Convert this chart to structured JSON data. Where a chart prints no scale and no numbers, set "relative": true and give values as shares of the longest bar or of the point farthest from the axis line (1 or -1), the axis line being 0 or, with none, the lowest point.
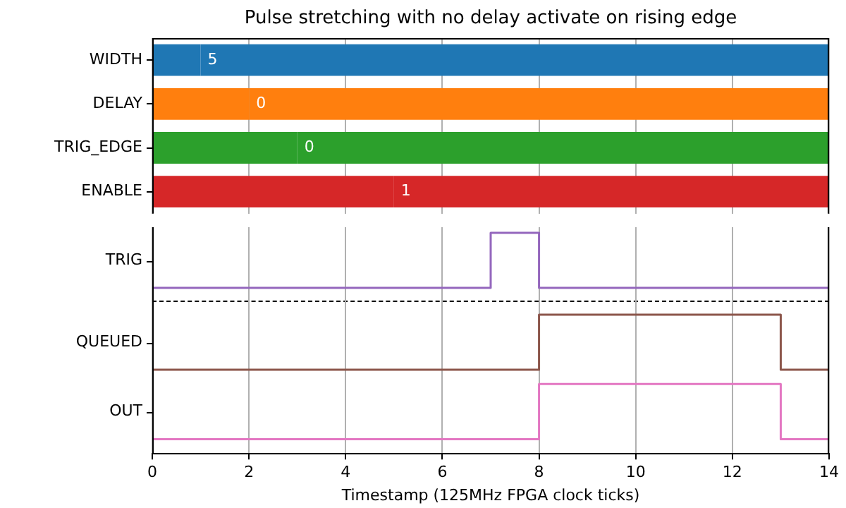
{
  "chart_data": [
    {
      "type": "bar",
      "orientation": "horizontal",
      "stacked": true,
      "title": "Pulse stretching with no delay activate on rising edge",
      "categories": [
        "WIDTH",
        "DELAY",
        "TRIG_EDGE",
        "ENABLE"
      ],
      "xlim": [
        0,
        14
      ],
      "xticks": [
        0,
        2,
        4,
        6,
        8,
        10,
        12,
        14
      ],
      "tick_labels": "y",
      "grid": "x",
      "series": [
        {
          "colors": [
            "#1f77b4",
            "#ff7f0e",
            "#2ca02c",
            "#d62728"
          ],
          "values": [
            1,
            2,
            3,
            5
          ]
        },
        {
          "colors": [
            "#1f77b4",
            "#ff7f0e",
            "#2ca02c",
            "#d62728"
          ],
          "values": [
            13,
            12,
            11,
            9
          ]
        }
      ],
      "annotations": [
        {
          "text": "5",
          "x": 1,
          "y": "WIDTH"
        },
        {
          "text": "0",
          "x": 2,
          "y": "DELAY"
        },
        {
          "text": "0",
          "x": 3,
          "y": "TRIG_EDGE"
        },
        {
          "text": "1",
          "x": 5,
          "y": "ENABLE"
        }
      ]
    },
    {
      "type": "step",
      "ylabel": "TRIG",
      "relative": true,
      "xlim": [
        0,
        14
      ],
      "xticks": [
        0,
        2,
        4,
        6,
        8,
        10,
        12,
        14
      ],
      "tick_labels": false,
      "grid": "x",
      "series": [
        {
          "color": "#9467bd",
          "x": [
            0,
            7,
            8,
            14
          ],
          "values": [
            0,
            1,
            0,
            0
          ]
        }
      ]
    },
    {
      "type": "step",
      "ylabel": "QUEUED",
      "relative": true,
      "xlim": [
        0,
        14
      ],
      "xticks": [
        0,
        2,
        4,
        6,
        8,
        10,
        12,
        14
      ],
      "tick_labels": false,
      "grid": "x",
      "series": [
        {
          "color": "#8c564b",
          "x": [
            0,
            8,
            13,
            14
          ],
          "values": [
            0,
            1,
            0,
            0
          ]
        }
      ]
    },
    {
      "type": "step",
      "ylabel": "OUT",
      "relative": true,
      "xlabel": "Timestamp (125MHz FPGA clock ticks)",
      "xlim": [
        0,
        14
      ],
      "xticks": [
        0,
        2,
        4,
        6,
        8,
        10,
        12,
        14
      ],
      "tick_labels": "x",
      "grid": "x",
      "series": [
        {
          "color": "#e377c2",
          "x": [
            0,
            8,
            13,
            14
          ],
          "values": [
            0,
            1,
            0,
            0
          ]
        }
      ]
    }
  ]
}
